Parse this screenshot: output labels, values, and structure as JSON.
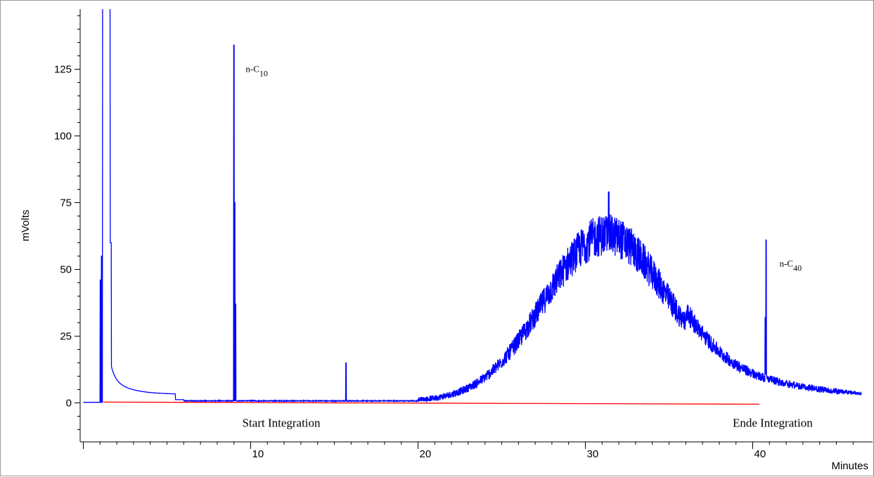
{
  "chart_data": {
    "type": "line",
    "xlabel": "Minutes",
    "ylabel": "mVolts",
    "xlim": [
      0,
      46.5
    ],
    "ylim": [
      -12,
      147
    ],
    "x_ticks": [
      10,
      20,
      30,
      40
    ],
    "y_ticks": [
      0,
      25,
      50,
      75,
      100,
      125
    ],
    "grid": false,
    "legend": "none",
    "series": [
      {
        "color": "#0000ff"
      }
    ],
    "baseline": {
      "color": "#ff0000",
      "x_start": 1.2,
      "x_end": 40.4,
      "y_start": 0.3,
      "y_end": -0.5
    },
    "peaks": [
      {
        "x": 1.4,
        "y": 147,
        "label": ""
      },
      {
        "x": 9.0,
        "y": 134,
        "label": "n-C10"
      },
      {
        "x": 15.7,
        "y": 15,
        "label": ""
      },
      {
        "x": 31.4,
        "y": 79,
        "label": ""
      },
      {
        "x": 40.8,
        "y": 61,
        "label": "n-C40"
      }
    ],
    "annotations": [
      {
        "text": "n-C",
        "sub": "10",
        "x": 9.7,
        "y": 124
      },
      {
        "text": "n-C",
        "sub": "40",
        "x": 41.6,
        "y": 51
      },
      {
        "text": "Start Integration",
        "x": 9.5,
        "y": -9
      },
      {
        "text": "Ende Integration",
        "x": 38.8,
        "y": -9
      }
    ]
  }
}
